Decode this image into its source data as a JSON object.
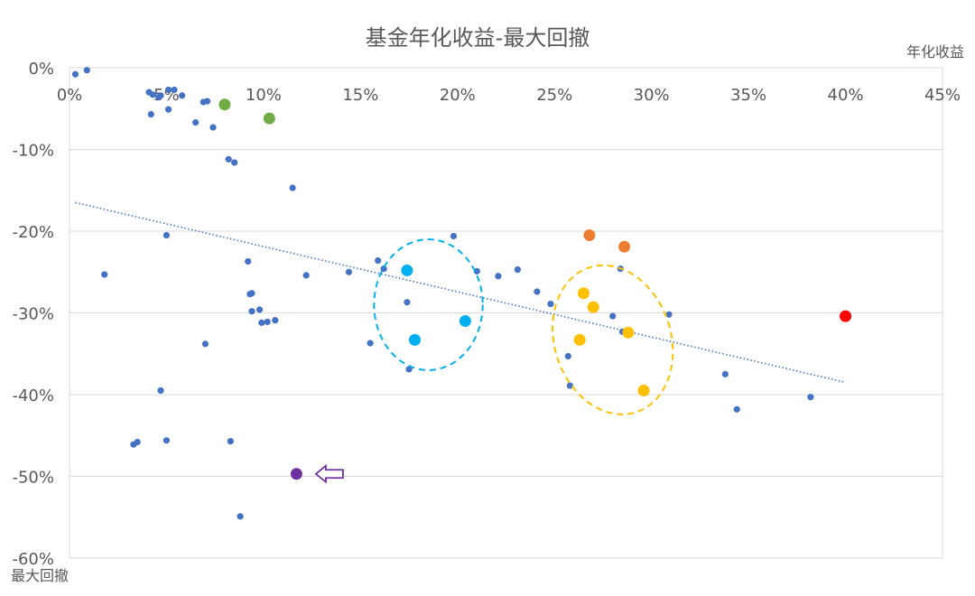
{
  "chart_data": {
    "type": "scatter",
    "title": "基金年化收益-最大回撤",
    "xlabel": "年化收益",
    "ylabel": "最大回撤",
    "xlim": [
      0,
      0.45
    ],
    "ylim": [
      -0.6,
      0
    ],
    "x_ticks": [
      "0%",
      "5%",
      "10%",
      "15%",
      "20%",
      "25%",
      "30%",
      "35%",
      "40%",
      "45%"
    ],
    "y_ticks": [
      "0%",
      "-10%",
      "-20%",
      "-30%",
      "-40%",
      "-50%",
      "-60%"
    ],
    "grid": true,
    "legend": "none",
    "trendline": {
      "style": "dotted",
      "color": "#4472c4",
      "x": [
        0.003,
        0.4
      ],
      "y": [
        -0.165,
        -0.385
      ]
    },
    "colors": {
      "default": "#4472c4",
      "green": "#70ad47",
      "cyan": "#00b0f0",
      "orange": "#ed7d31",
      "gold": "#ffc000",
      "red": "#ff0000",
      "purple": "#7030a0"
    },
    "series": [
      {
        "color": "#4472c4",
        "size": "small",
        "points": [
          [
            0.003,
            -0.008
          ],
          [
            0.009,
            -0.003
          ],
          [
            0.041,
            -0.03
          ],
          [
            0.043,
            -0.033
          ],
          [
            0.046,
            -0.036
          ],
          [
            0.047,
            -0.034
          ],
          [
            0.051,
            -0.027
          ],
          [
            0.054,
            -0.027
          ],
          [
            0.058,
            -0.034
          ],
          [
            0.069,
            -0.042
          ],
          [
            0.071,
            -0.041
          ],
          [
            0.051,
            -0.051
          ],
          [
            0.042,
            -0.057
          ],
          [
            0.065,
            -0.067
          ],
          [
            0.074,
            -0.073
          ],
          [
            0.082,
            -0.112
          ],
          [
            0.085,
            -0.116
          ],
          [
            0.115,
            -0.147
          ],
          [
            0.05,
            -0.205
          ],
          [
            0.018,
            -0.253
          ],
          [
            0.092,
            -0.237
          ],
          [
            0.093,
            -0.277
          ],
          [
            0.094,
            -0.276
          ],
          [
            0.122,
            -0.254
          ],
          [
            0.144,
            -0.25
          ],
          [
            0.094,
            -0.298
          ],
          [
            0.098,
            -0.296
          ],
          [
            0.099,
            -0.312
          ],
          [
            0.102,
            -0.311
          ],
          [
            0.106,
            -0.309
          ],
          [
            0.07,
            -0.338
          ],
          [
            0.047,
            -0.395
          ],
          [
            0.033,
            -0.461
          ],
          [
            0.035,
            -0.458
          ],
          [
            0.05,
            -0.456
          ],
          [
            0.083,
            -0.457
          ],
          [
            0.088,
            -0.549
          ],
          [
            0.159,
            -0.236
          ],
          [
            0.162,
            -0.246
          ],
          [
            0.174,
            -0.287
          ],
          [
            0.155,
            -0.337
          ],
          [
            0.175,
            -0.369
          ],
          [
            0.198,
            -0.206
          ],
          [
            0.21,
            -0.249
          ],
          [
            0.221,
            -0.255
          ],
          [
            0.231,
            -0.247
          ],
          [
            0.241,
            -0.274
          ],
          [
            0.248,
            -0.289
          ],
          [
            0.257,
            -0.353
          ],
          [
            0.258,
            -0.389
          ],
          [
            0.27,
            -0.291
          ],
          [
            0.28,
            -0.304
          ],
          [
            0.284,
            -0.246
          ],
          [
            0.285,
            -0.323
          ],
          [
            0.309,
            -0.302
          ],
          [
            0.338,
            -0.375
          ],
          [
            0.344,
            -0.418
          ],
          [
            0.382,
            -0.403
          ]
        ]
      },
      {
        "color": "#70ad47",
        "size": "large",
        "points": [
          [
            0.08,
            -0.045
          ],
          [
            0.103,
            -0.062
          ]
        ]
      },
      {
        "color": "#00b0f0",
        "size": "large",
        "points": [
          [
            0.174,
            -0.248
          ],
          [
            0.178,
            -0.333
          ],
          [
            0.204,
            -0.31
          ]
        ]
      },
      {
        "color": "#ed7d31",
        "size": "large",
        "points": [
          [
            0.268,
            -0.205
          ],
          [
            0.286,
            -0.219
          ]
        ]
      },
      {
        "color": "#ffc000",
        "size": "large",
        "points": [
          [
            0.265,
            -0.276
          ],
          [
            0.27,
            -0.293
          ],
          [
            0.263,
            -0.333
          ],
          [
            0.288,
            -0.324
          ],
          [
            0.296,
            -0.395
          ]
        ]
      },
      {
        "color": "#ff0000",
        "size": "large",
        "points": [
          [
            0.4,
            -0.304
          ]
        ]
      },
      {
        "color": "#7030a0",
        "size": "large",
        "points": [
          [
            0.117,
            -0.497
          ]
        ]
      }
    ],
    "annotations": [
      {
        "type": "dashed-ellipse",
        "color": "#00b0f0",
        "cx": 0.185,
        "cy": -0.29,
        "rx": 0.028,
        "ry": 0.08
      },
      {
        "type": "dashed-ellipse",
        "color": "#ffc000",
        "cx": 0.28,
        "cy": -0.333,
        "rx": 0.03,
        "ry": 0.093,
        "rotate": -18
      },
      {
        "type": "arrow-left",
        "color": "#7030a0",
        "x": 0.127,
        "y": -0.497
      }
    ]
  }
}
